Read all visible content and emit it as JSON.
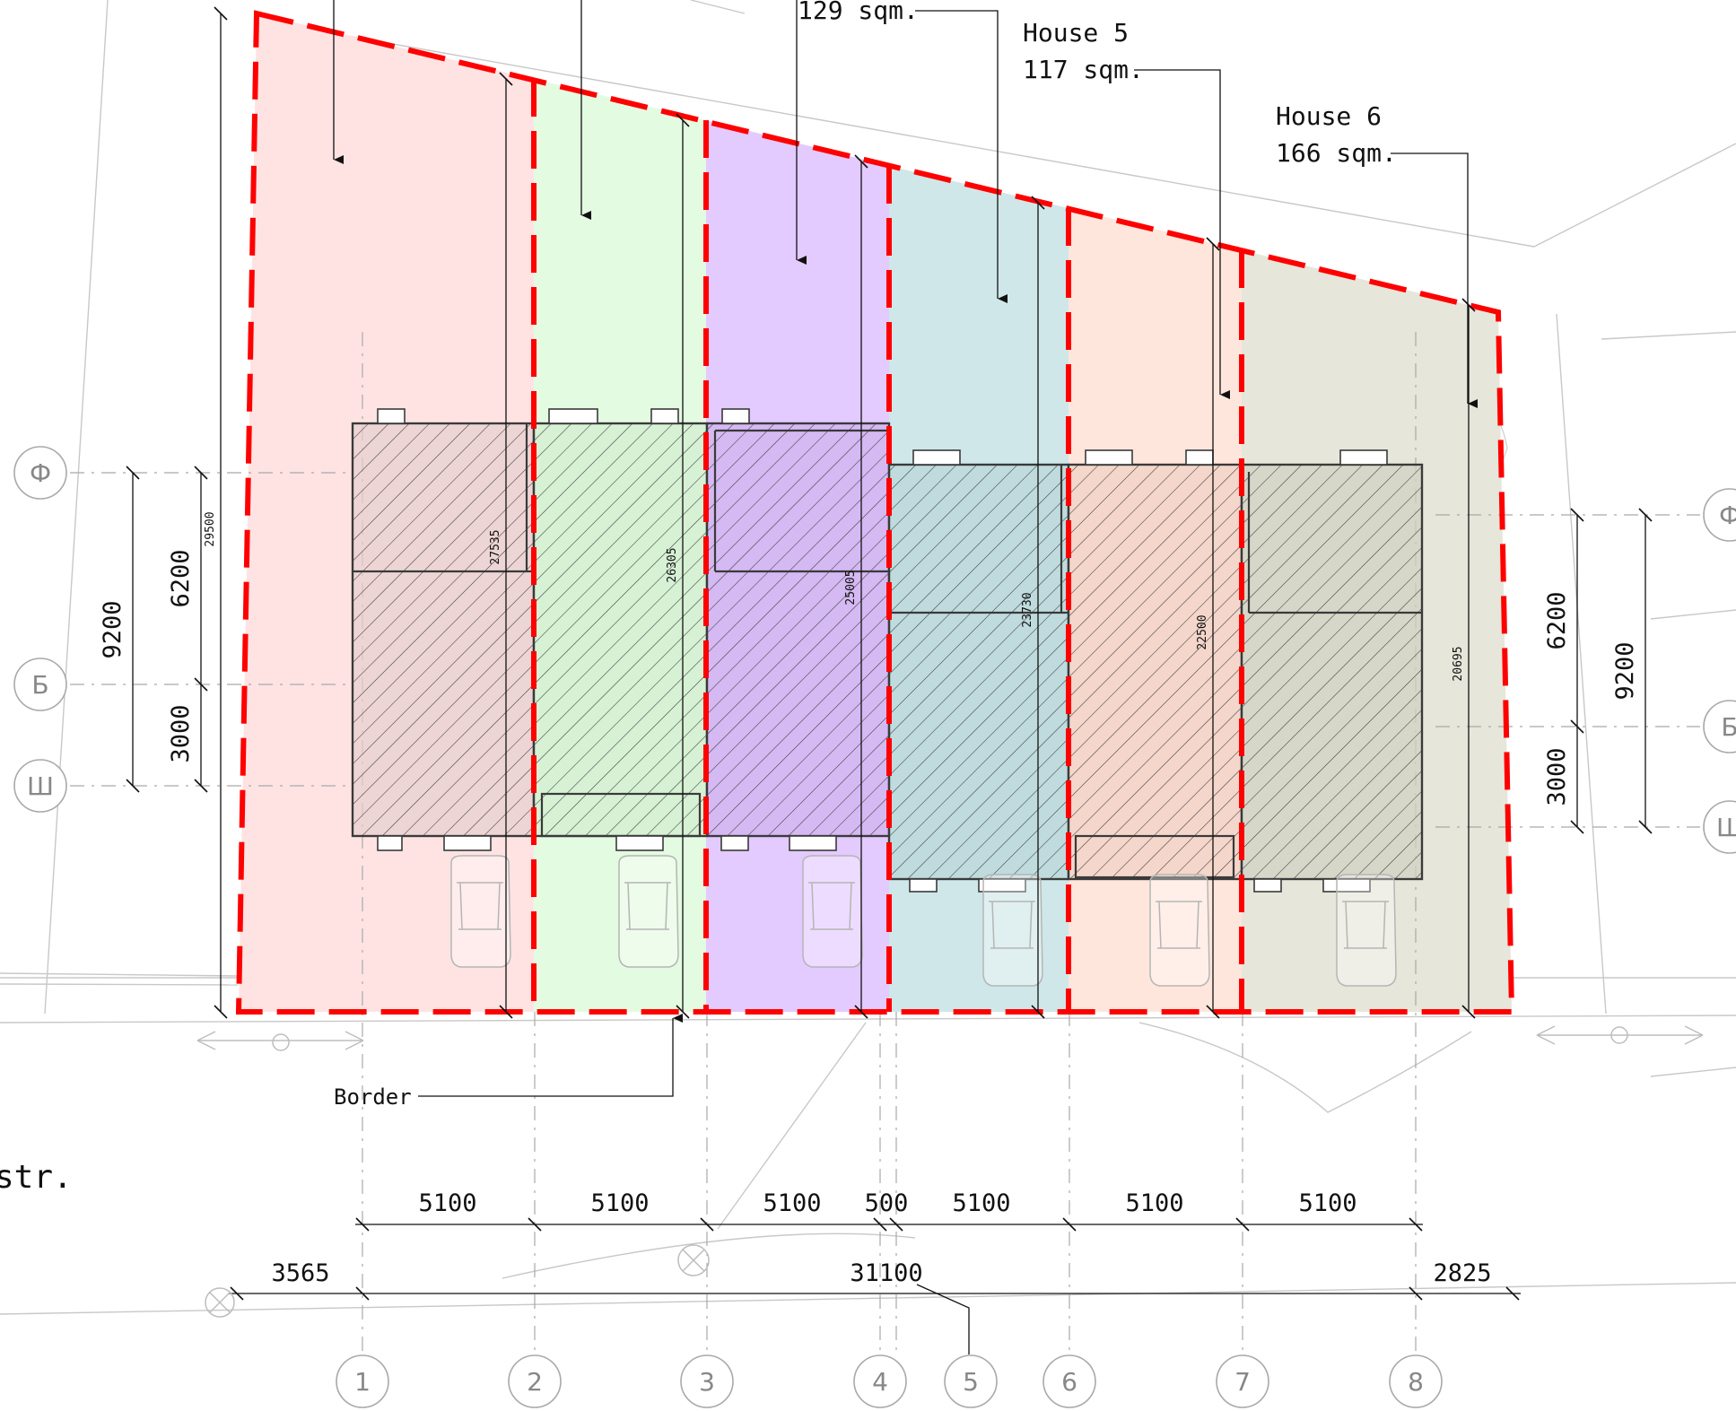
{
  "labels": {
    "house4_area": "129 sqm.",
    "house5_name": "House 5",
    "house5_area": "117 sqm.",
    "house6_name": "House 6",
    "house6_area": "166 sqm.",
    "border": "Border",
    "street_fragment": "str."
  },
  "plot_depths": [
    "29500",
    "27535",
    "26305",
    "25005",
    "23730",
    "22500",
    "20695"
  ],
  "left_dims": {
    "overall": "9200",
    "upper": "6200",
    "lower": "3000"
  },
  "right_dims": {
    "overall": "9200",
    "upper": "6200",
    "lower": "3000"
  },
  "bottom_dims": {
    "row1": [
      "5100",
      "5100",
      "5100",
      "500",
      "5100",
      "5100",
      "5100"
    ],
    "row2": {
      "left": "3565",
      "total": "31100",
      "right": "2825"
    }
  },
  "grid_axes_numbers": [
    "1",
    "2",
    "3",
    "4",
    "5",
    "6",
    "7",
    "8"
  ],
  "grid_axes_letters_left": [
    "Ф",
    "Б",
    "Ш"
  ],
  "grid_axes_letters_right": [
    "Ф",
    "Б",
    "Ш"
  ],
  "plot_colors": [
    "#ffe3e3",
    "#e3fbe1",
    "#e3caff",
    "#cfe7e9",
    "#ffe6dc",
    "#e6e6da"
  ],
  "border_color": "#ff0000",
  "icons": [
    "arrow-icon",
    "car-icon",
    "grid-bubble-icon",
    "north-marker-icon"
  ]
}
